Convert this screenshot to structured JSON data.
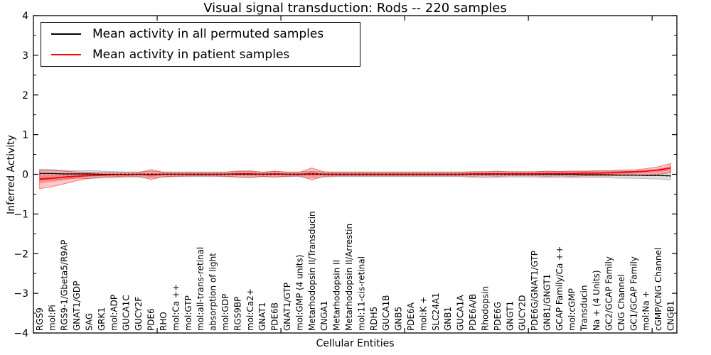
{
  "chart_data": {
    "type": "line",
    "title": "Visual signal transduction: Rods -- 220 samples",
    "xlabel": "Cellular Entities",
    "ylabel": "Inferred Activity",
    "ylim": [
      -4,
      4
    ],
    "xlim": [
      0,
      52
    ],
    "grid": false,
    "legend_position": "upper left",
    "yticks": [
      {
        "value": 4,
        "label": "4"
      },
      {
        "value": 3,
        "label": "3"
      },
      {
        "value": 2,
        "label": "2"
      },
      {
        "value": 1,
        "label": "1"
      },
      {
        "value": 0,
        "label": "0"
      },
      {
        "value": -1,
        "label": "−1"
      },
      {
        "value": -2,
        "label": "−2"
      },
      {
        "value": -3,
        "label": "−3"
      },
      {
        "value": -4,
        "label": "−4"
      }
    ],
    "xtick_values": [
      10,
      20,
      30,
      40,
      50
    ],
    "categories": [
      "RGS9",
      "mol:Pi",
      "RGS9-1/Gbeta5/R9AP",
      "GNAT1/GDP",
      "SAG",
      "GRK1",
      "mol:ADP",
      "GUCA1C",
      "GUCY2F",
      "PDE6",
      "RHO",
      "mol:Ca ++",
      "mol:GTP",
      "mol:all-trans-retinal",
      "absorption of light",
      "mol:GDP",
      "RGS9BP",
      "mol:Ca2+",
      "GNAT1",
      "PDE6B",
      "GNAT1/GTP",
      "mol:GMP (4 units)",
      "Metarhodopsin II/Transducin",
      "CNGA1",
      "Metarhodopsin II",
      "Metarhodopsin II/Arrestin",
      "mol:11-cis-retinal",
      "RDH5",
      "GUCA1B",
      "GNB5",
      "PDE6A",
      "mol:K +",
      "SLC24A1",
      "GNB1",
      "GUCA1A",
      "PDE6A/B",
      "Rhodopsin",
      "PDE6G",
      "GNGT1",
      "GUCY2D",
      "PDE6G/GNAT1/GTP",
      "GNB1/GNGT1",
      "GCAP Family/Ca ++",
      "mol:cGMP",
      "Transducin",
      "Na + (4 Units)",
      "GC2/GCAP Family",
      "CNG Channel",
      "GC1/GCAP Family",
      "mol:Na +",
      "cGMP/CNG Channel",
      "CNGB1"
    ],
    "series": [
      {
        "name": "Mean activity in all permuted samples",
        "color": "#000000",
        "values": [
          0.02,
          0.02,
          0.01,
          0.01,
          0.01,
          0,
          0,
          0,
          0,
          0,
          0,
          0,
          0,
          0,
          0,
          0,
          0,
          0,
          0,
          0,
          0,
          0,
          0.01,
          0,
          0,
          0,
          0,
          0,
          0,
          0,
          0,
          0,
          0,
          0,
          0,
          0,
          0,
          0,
          0,
          0,
          0,
          0,
          0,
          0,
          -0.01,
          -0.01,
          -0.01,
          -0.02,
          -0.02,
          -0.03,
          -0.03,
          -0.04
        ]
      },
      {
        "name": "Mean activity in patient samples",
        "color": "#ff0000",
        "values": [
          -0.12,
          -0.1,
          -0.07,
          -0.05,
          -0.03,
          -0.02,
          -0.01,
          -0.01,
          0,
          -0.01,
          0,
          0,
          0,
          0,
          0,
          0,
          0.01,
          0.01,
          0,
          0.01,
          0,
          0,
          0.01,
          0,
          0,
          0,
          0,
          0,
          0,
          0,
          0,
          0,
          0,
          0,
          0,
          0.01,
          0.01,
          0.01,
          0.01,
          0.01,
          0.01,
          0.02,
          0.02,
          0.02,
          0.03,
          0.03,
          0.04,
          0.05,
          0.06,
          0.08,
          0.11,
          0.16
        ]
      }
    ],
    "bands": [
      {
        "name": "permuted-samples-envelope",
        "fill": "rgba(0,0,0,0.13)",
        "edge": "rgba(0,0,0,0.22)",
        "upper": [
          0.13,
          0.12,
          0.1,
          0.09,
          0.1,
          0.08,
          0.07,
          0.06,
          0.06,
          0.08,
          0.06,
          0.06,
          0.06,
          0.06,
          0.06,
          0.06,
          0.07,
          0.07,
          0.06,
          0.07,
          0.06,
          0.06,
          0.08,
          0.06,
          0.06,
          0.06,
          0.06,
          0.06,
          0.06,
          0.06,
          0.06,
          0.06,
          0.06,
          0.06,
          0.06,
          0.07,
          0.07,
          0.08,
          0.07,
          0.07,
          0.07,
          0.08,
          0.07,
          0.08,
          0.07,
          0.08,
          0.08,
          0.08,
          0.08,
          0.09,
          0.1,
          0.11
        ],
        "lower": [
          -0.15,
          -0.14,
          -0.12,
          -0.1,
          -0.11,
          -0.09,
          -0.08,
          -0.07,
          -0.07,
          -0.09,
          -0.07,
          -0.06,
          -0.06,
          -0.06,
          -0.06,
          -0.06,
          -0.07,
          -0.08,
          -0.06,
          -0.07,
          -0.06,
          -0.06,
          -0.09,
          -0.07,
          -0.06,
          -0.06,
          -0.06,
          -0.06,
          -0.06,
          -0.06,
          -0.06,
          -0.06,
          -0.06,
          -0.06,
          -0.06,
          -0.08,
          -0.09,
          -0.08,
          -0.07,
          -0.07,
          -0.07,
          -0.09,
          -0.08,
          -0.09,
          -0.08,
          -0.09,
          -0.09,
          -0.1,
          -0.1,
          -0.11,
          -0.12,
          -0.14
        ]
      },
      {
        "name": "patient-samples-envelope",
        "fill": "rgba(255,0,0,0.22)",
        "edge": "rgba(230,30,30,0.55)",
        "upper": [
          0.1,
          0.1,
          0.08,
          0.06,
          0.05,
          0.04,
          0.04,
          0.04,
          0.04,
          0.12,
          0.05,
          0.04,
          0.04,
          0.04,
          0.04,
          0.05,
          0.08,
          0.09,
          0.05,
          0.08,
          0.05,
          0.05,
          0.16,
          0.06,
          0.05,
          0.05,
          0.05,
          0.05,
          0.05,
          0.05,
          0.05,
          0.05,
          0.05,
          0.05,
          0.05,
          0.06,
          0.06,
          0.07,
          0.06,
          0.06,
          0.06,
          0.08,
          0.07,
          0.08,
          0.08,
          0.09,
          0.09,
          0.11,
          0.11,
          0.14,
          0.19,
          0.27
        ],
        "lower": [
          -0.36,
          -0.31,
          -0.24,
          -0.16,
          -0.1,
          -0.07,
          -0.06,
          -0.05,
          -0.05,
          -0.13,
          -0.06,
          -0.05,
          -0.04,
          -0.04,
          -0.04,
          -0.05,
          -0.07,
          -0.08,
          -0.05,
          -0.07,
          -0.05,
          -0.04,
          -0.14,
          -0.05,
          -0.04,
          -0.04,
          -0.04,
          -0.04,
          -0.04,
          -0.04,
          -0.04,
          -0.04,
          -0.04,
          -0.04,
          -0.04,
          -0.05,
          -0.04,
          -0.05,
          -0.04,
          -0.04,
          -0.04,
          -0.05,
          -0.04,
          -0.05,
          -0.04,
          -0.04,
          -0.04,
          -0.03,
          -0.03,
          -0.02,
          0.0,
          0.04
        ]
      }
    ],
    "legend": {
      "entries": [
        {
          "label": "Mean activity in all permuted samples",
          "color": "#000000"
        },
        {
          "label": "Mean activity in patient samples",
          "color": "#ff0000"
        }
      ]
    }
  }
}
